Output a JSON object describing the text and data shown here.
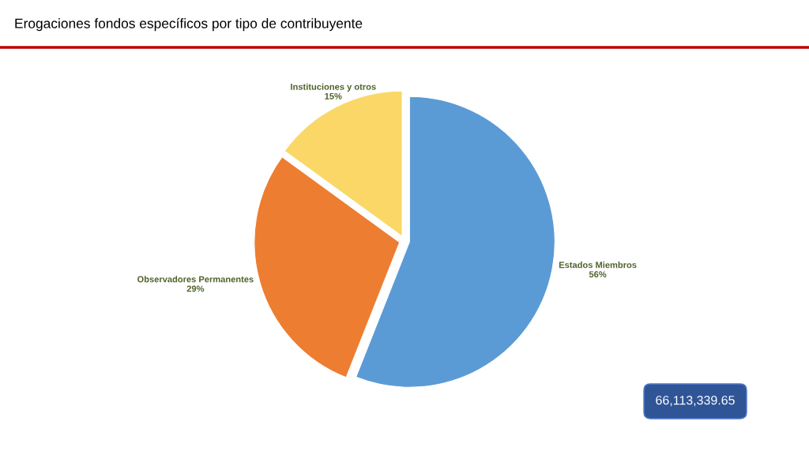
{
  "chart_data": {
    "type": "pie",
    "title": "Erogaciones fondos específicos por tipo de contribuyente",
    "categories": [
      "Estados Miembros",
      "Observadores Permanentes",
      "Instituciones y otros"
    ],
    "values": [
      56,
      29,
      15
    ],
    "colors": [
      "#5b9bd5",
      "#ed7d31",
      "#fad767"
    ],
    "value_labels": [
      "56%",
      "29%",
      "15%"
    ],
    "annotations": [
      "66,113,339.65"
    ]
  }
}
